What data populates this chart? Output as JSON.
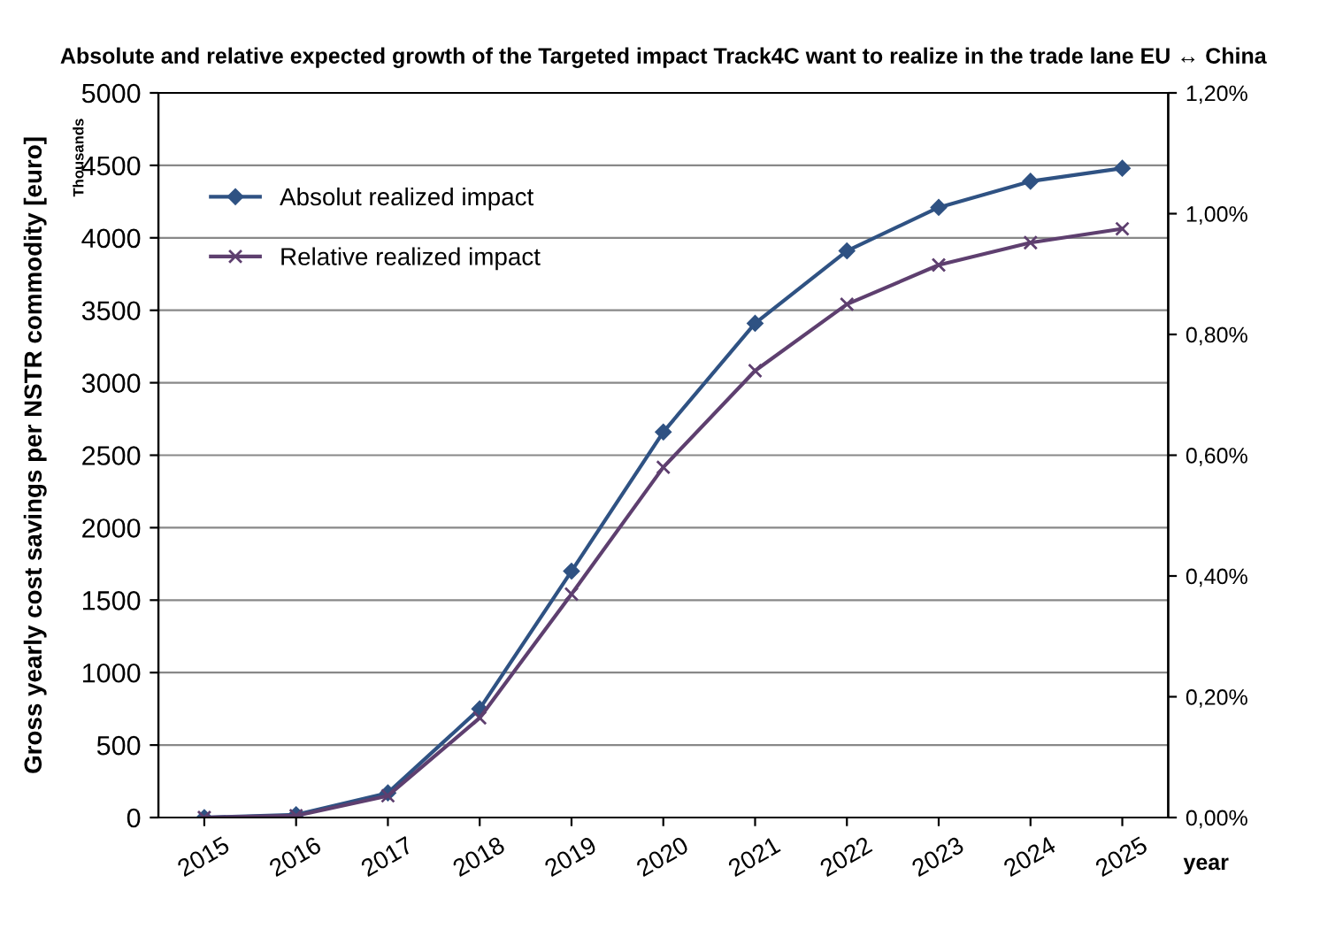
{
  "chart_data": {
    "type": "line",
    "title": "Absolute and relative expected growth of the Targeted impact Track4C want to realize in the trade lane EU ↔ China",
    "ylabel": "Gross yearly cost savings per NSTR commodity [euro]",
    "xlabel": "year",
    "annotations": [
      "Thousands"
    ],
    "categories": [
      "2015",
      "2016",
      "2017",
      "2018",
      "2019",
      "2020",
      "2021",
      "2022",
      "2023",
      "2024",
      "2025"
    ],
    "series": [
      {
        "name": "Absolut realized impact",
        "color": "#2f5283",
        "marker": "diamond",
        "values": [
          0,
          20,
          170,
          750,
          1700,
          2660,
          3410,
          3910,
          4210,
          4390,
          4480
        ]
      },
      {
        "name": "Relative realized impact",
        "color": "#5e3f6f",
        "marker": "cross",
        "axis": "y2",
        "values": [
          0,
          0.003,
          0.036,
          0.165,
          0.37,
          0.58,
          0.74,
          0.85,
          0.915,
          0.952,
          0.975
        ]
      }
    ],
    "ylim": [
      0,
      5000
    ],
    "yticks": [
      0,
      500,
      1000,
      1500,
      2000,
      2500,
      3000,
      3500,
      4000,
      4500,
      5000
    ],
    "y2lim": [
      0,
      1.2
    ],
    "y2ticks": [
      {
        "value": 0,
        "label": "0,00%"
      },
      {
        "value": 0.2,
        "label": "0,20%"
      },
      {
        "value": 0.4,
        "label": "0,40%"
      },
      {
        "value": 0.6,
        "label": "0,60%"
      },
      {
        "value": 0.8,
        "label": "0,80%"
      },
      {
        "value": 1.0,
        "label": "1,00%"
      },
      {
        "value": 1.2,
        "label": "1,20%"
      }
    ],
    "grid": "y",
    "legend": "top left",
    "line_style": "solid"
  }
}
